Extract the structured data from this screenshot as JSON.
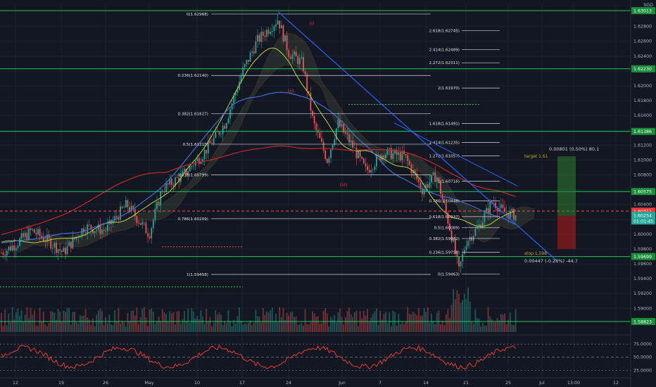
{
  "currency": "SGD",
  "colors": {
    "bg": "#131722",
    "grid": "#1e2230",
    "up": "#26a69a",
    "down": "#ef5350",
    "fib": "#d1d4dc",
    "support": "#22c55e",
    "trend": "#2962ff",
    "ma_blue": "#3f6fd8",
    "ma_yellow": "#b6d43a",
    "ma_red": "#c62828",
    "rsi": "#e53935",
    "long_green": "#2e7d32",
    "long_red": "#b71c1c"
  },
  "chart_data": {
    "type": "candlestick",
    "ylim": [
      1.5868,
      1.631
    ],
    "x_ticks": [
      "12",
      "19",
      "26",
      "May",
      "10",
      "17",
      "24",
      "Jun",
      "7",
      "14",
      "21",
      "25",
      "Jul",
      "13:00",
      "12"
    ],
    "y_ticks": [
      "1.62800",
      "1.62600",
      "1.62400",
      "1.62200",
      "1.62000",
      "1.61800",
      "1.61600",
      "1.61400",
      "1.61200",
      "1.61000",
      "1.60800",
      "1.60600",
      "1.60400",
      "1.60200",
      "1.60000",
      "1.59800",
      "1.59600",
      "1.59400",
      "1.59200",
      "1.59000"
    ],
    "rsi_ticks": [
      "75.0000",
      "50.0000",
      "25.0000"
    ],
    "horizontal_levels": [
      {
        "value": 1.63013,
        "label": "1.63013"
      },
      {
        "value": 1.6223,
        "label": "1.62230"
      },
      {
        "value": 1.61386,
        "label": "1.61386"
      },
      {
        "value": 1.60575,
        "label": "1.60575"
      },
      {
        "value": 1.59699,
        "label": "1.59699"
      },
      {
        "value": 1.58823,
        "label": "1.58823"
      }
    ],
    "current_price": {
      "value": 1.60254,
      "label": "1.60254",
      "countdown": "01:01:45"
    },
    "red_price": {
      "value": 1.60311,
      "label": "1.60311"
    },
    "fib_retracement": [
      {
        "ratio": 0,
        "price": 1.62968,
        "label": "0(1.62968)"
      },
      {
        "ratio": 0.236,
        "price": 1.6214,
        "label": "0.236(1.62140)"
      },
      {
        "ratio": 0.382,
        "price": 1.61627,
        "label": "0.382(1.61627)"
      },
      {
        "ratio": 0.5,
        "price": 1.61213,
        "label": "0.5(1.61213)"
      },
      {
        "ratio": 0.618,
        "price": 1.60799,
        "label": "0.618(1.60799)"
      },
      {
        "ratio": 0.786,
        "price": 1.60209,
        "label": "0.786(1.60209)"
      },
      {
        "ratio": 1,
        "price": 1.59458,
        "label": "1(1.59458)"
      }
    ],
    "fib_extension": [
      {
        "ratio": 2.618,
        "price": 1.62745,
        "label": "2.618(1.62745)"
      },
      {
        "ratio": 2.414,
        "price": 1.62489,
        "label": "2.414(1.62489)"
      },
      {
        "ratio": 2.272,
        "price": 1.62311,
        "label": "2.272(1.62311)"
      },
      {
        "ratio": 2,
        "price": 1.6197,
        "label": "2(1.61970)"
      },
      {
        "ratio": 1.618,
        "price": 1.61491,
        "label": "1.618(1.61491)"
      },
      {
        "ratio": 1.414,
        "price": 1.61235,
        "label": "1.414(1.61235)"
      },
      {
        "ratio": 1.272,
        "price": 1.61057,
        "label": "1.272(1.61057)"
      },
      {
        "ratio": 1,
        "price": 1.60716,
        "label": "1(1.60716)"
      },
      {
        "ratio": 0.786,
        "price": 1.60448,
        "label": "0.786(1.60448)"
      },
      {
        "ratio": 0.618,
        "price": 1.60237,
        "label": "0.618(1.60237)"
      },
      {
        "ratio": 0.5,
        "price": 1.60089,
        "label": "0.5(1.60089)"
      },
      {
        "ratio": 0.382,
        "price": 1.59942,
        "label": "0.382(1.59942)"
      },
      {
        "ratio": 0.236,
        "price": 1.59758,
        "label": "0.236(1.59758)"
      },
      {
        "ratio": 0,
        "price": 1.59463,
        "label": "0(1.59463)"
      }
    ],
    "position": {
      "target_label": "target 1.61",
      "stop_label": "stop 1.598",
      "profit_text": "0.00801 (0.50%) 80.1",
      "loss_text": "0.00447 (-0.28%) -44.7"
    },
    "wave_labels": [
      "(i)",
      "(ii)",
      "(iii)"
    ]
  }
}
